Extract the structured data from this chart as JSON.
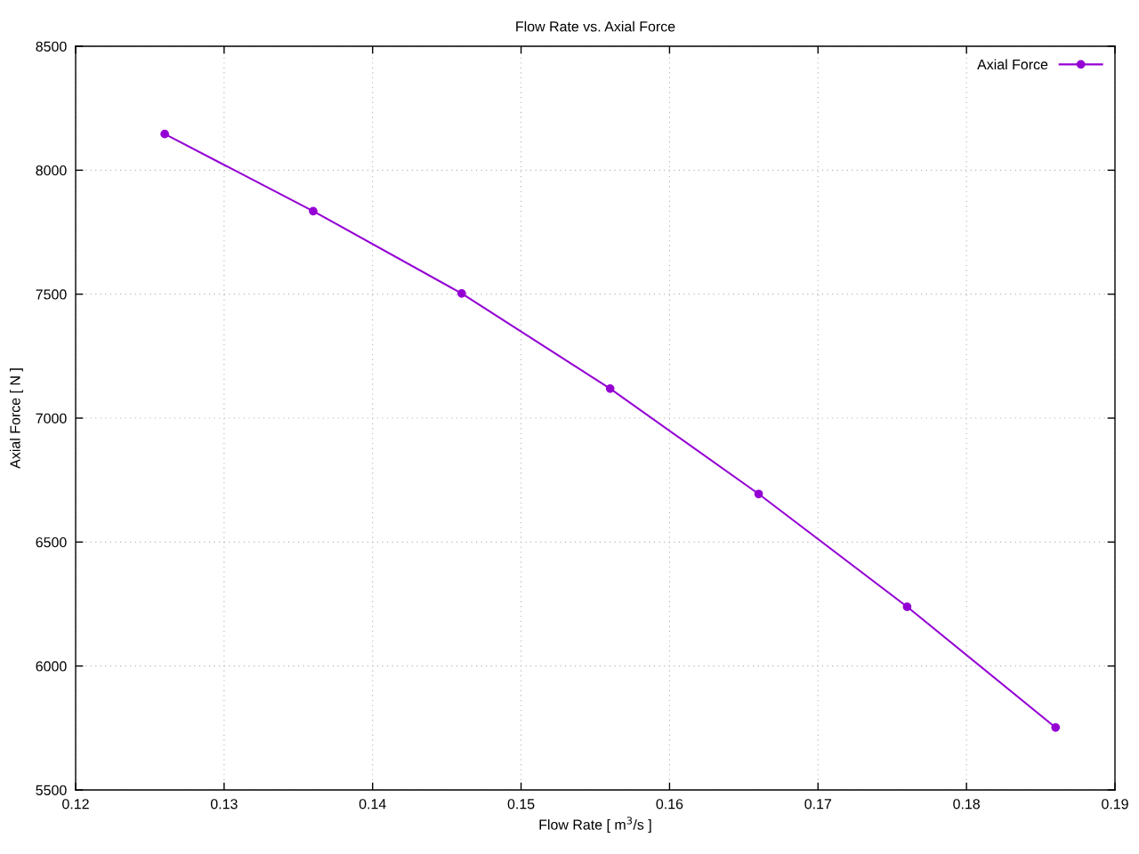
{
  "chart_data": {
    "type": "line",
    "title": "Flow Rate vs. Axial Force",
    "xlabel": "Flow Rate [ m$^{3}$/s ]",
    "ylabel": "Axial Force [ N ]",
    "x": [
      0.126,
      0.136,
      0.146,
      0.156,
      0.166,
      0.176,
      0.186
    ],
    "series": [
      {
        "name": "Axial Force",
        "color": "#9400d3",
        "values": [
          8146,
          7835,
          7503,
          7119,
          6694,
          6239,
          5752
        ]
      }
    ],
    "xlim": [
      0.12,
      0.19
    ],
    "xticks": [
      0.12,
      0.13,
      0.14,
      0.15,
      0.16,
      0.17,
      0.18,
      0.19
    ],
    "ylim": [
      5500,
      8500
    ],
    "yticks": [
      5500,
      6000,
      6500,
      7000,
      7500,
      8000,
      8500
    ],
    "grid": true,
    "legend": "top right",
    "marker": "circle",
    "line_style": "solid"
  }
}
